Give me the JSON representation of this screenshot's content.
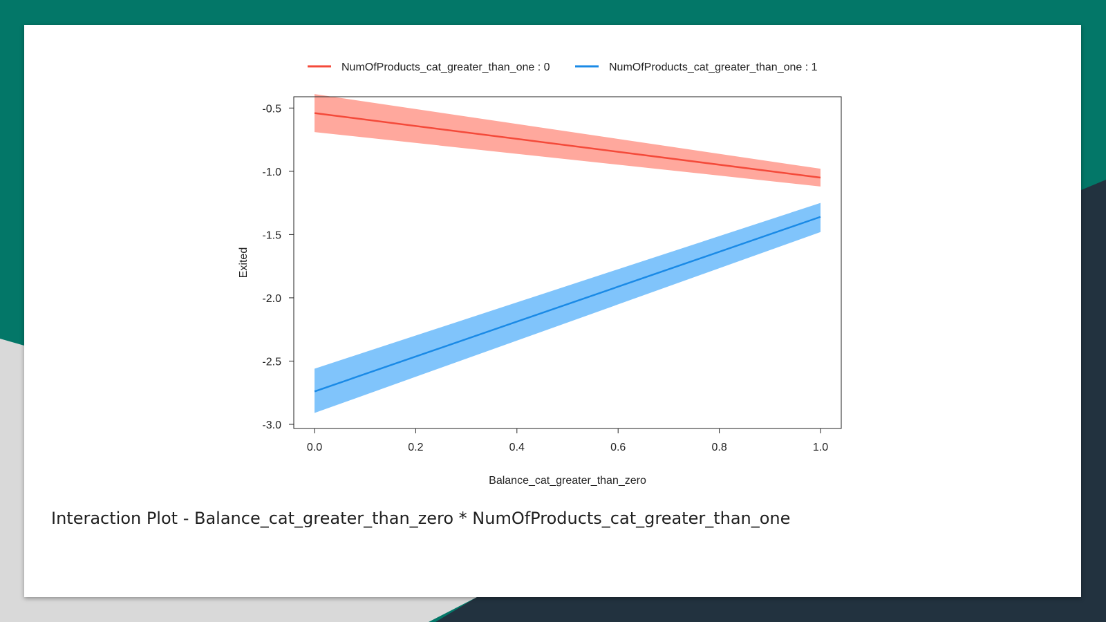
{
  "slide": {
    "caption": "Interaction Plot - Balance_cat_greater_than_zero * NumOfProducts_cat_greater_than_one"
  },
  "theme": {
    "teal": "#037768",
    "dark": "#22323f",
    "grey": "#d9d9d9",
    "slide_bg": "#ffffff"
  },
  "chart_data": {
    "type": "line",
    "title": "",
    "xlabel": "Balance_cat_greater_than_zero",
    "ylabel": "Exited",
    "xlim": [
      0.0,
      1.0
    ],
    "ylim": [
      -3.0,
      -0.5
    ],
    "x_ticks": [
      "0.0",
      "0.2",
      "0.4",
      "0.6",
      "0.8",
      "1.0"
    ],
    "y_ticks": [
      "-0.5",
      "-1.0",
      "-1.5",
      "-2.0",
      "-2.5",
      "-3.0"
    ],
    "grid": false,
    "legend_position": "top",
    "series": [
      {
        "name": "NumOfProducts_cat_greater_than_one : 0",
        "color": "#f44a3a",
        "band_color": "#ffa89d",
        "x": [
          0.0,
          1.0
        ],
        "y": [
          -0.54,
          -1.05
        ],
        "lower": [
          -0.69,
          -1.12
        ],
        "upper": [
          -0.39,
          -0.98
        ]
      },
      {
        "name": "NumOfProducts_cat_greater_than_one : 1",
        "color": "#1a8ae6",
        "band_color": "#80c4fb",
        "x": [
          0.0,
          1.0
        ],
        "y": [
          -2.74,
          -1.36
        ],
        "lower": [
          -2.91,
          -1.48
        ],
        "upper": [
          -2.56,
          -1.25
        ]
      }
    ]
  }
}
